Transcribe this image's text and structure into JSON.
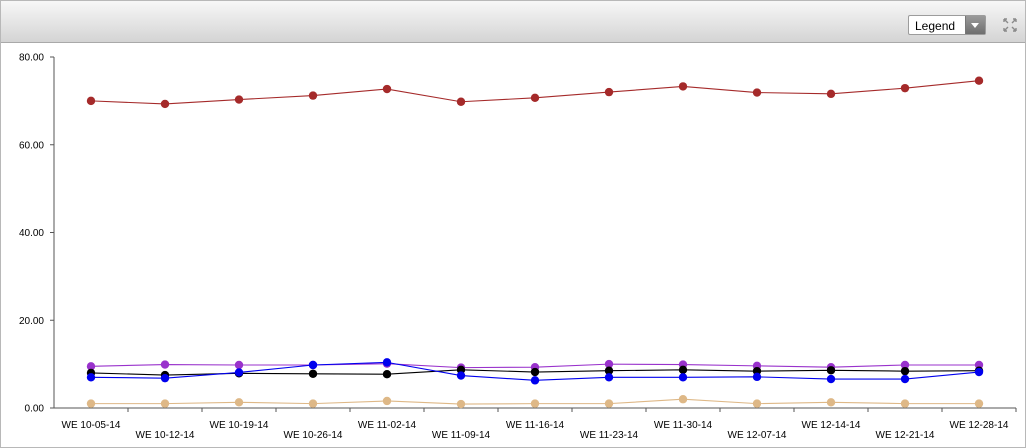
{
  "toolbar": {
    "legend_label": "Legend",
    "expand_icon": "expand-arrows-icon"
  },
  "chart_data": {
    "type": "line",
    "title": "",
    "xlabel": "",
    "ylabel": "",
    "ylim": [
      0,
      80
    ],
    "yticks": [
      "0.00",
      "20.00",
      "40.00",
      "60.00",
      "80.00"
    ],
    "grid": false,
    "categories": [
      "WE 10-05-14",
      "WE 10-12-14",
      "WE 10-19-14",
      "WE 10-26-14",
      "WE 11-02-14",
      "WE 11-09-14",
      "WE 11-16-14",
      "WE 11-23-14",
      "WE 11-30-14",
      "WE 12-07-14",
      "WE 12-14-14",
      "WE 12-21-14",
      "WE 12-28-14"
    ],
    "series": [
      {
        "color": "#a52a2a",
        "values": [
          70.0,
          69.3,
          70.3,
          71.2,
          72.7,
          69.8,
          70.7,
          72.0,
          73.3,
          71.9,
          71.6,
          72.9,
          74.6
        ]
      },
      {
        "color": "#9932cc",
        "values": [
          9.5,
          9.9,
          9.8,
          9.8,
          10.1,
          9.2,
          9.3,
          10.0,
          9.9,
          9.6,
          9.3,
          9.8,
          9.8
        ]
      },
      {
        "color": "#000000",
        "values": [
          8.0,
          7.5,
          7.9,
          7.8,
          7.7,
          8.7,
          8.2,
          8.5,
          8.7,
          8.4,
          8.6,
          8.4,
          8.5
        ]
      },
      {
        "color": "#0000ee",
        "values": [
          7.0,
          6.8,
          8.1,
          9.8,
          10.4,
          7.4,
          6.3,
          7.0,
          7.0,
          7.1,
          6.6,
          6.6,
          8.2
        ]
      },
      {
        "color": "#deb887",
        "values": [
          1.0,
          1.0,
          1.3,
          1.0,
          1.6,
          0.9,
          1.0,
          1.0,
          2.0,
          1.0,
          1.3,
          1.0,
          1.0
        ]
      }
    ]
  }
}
